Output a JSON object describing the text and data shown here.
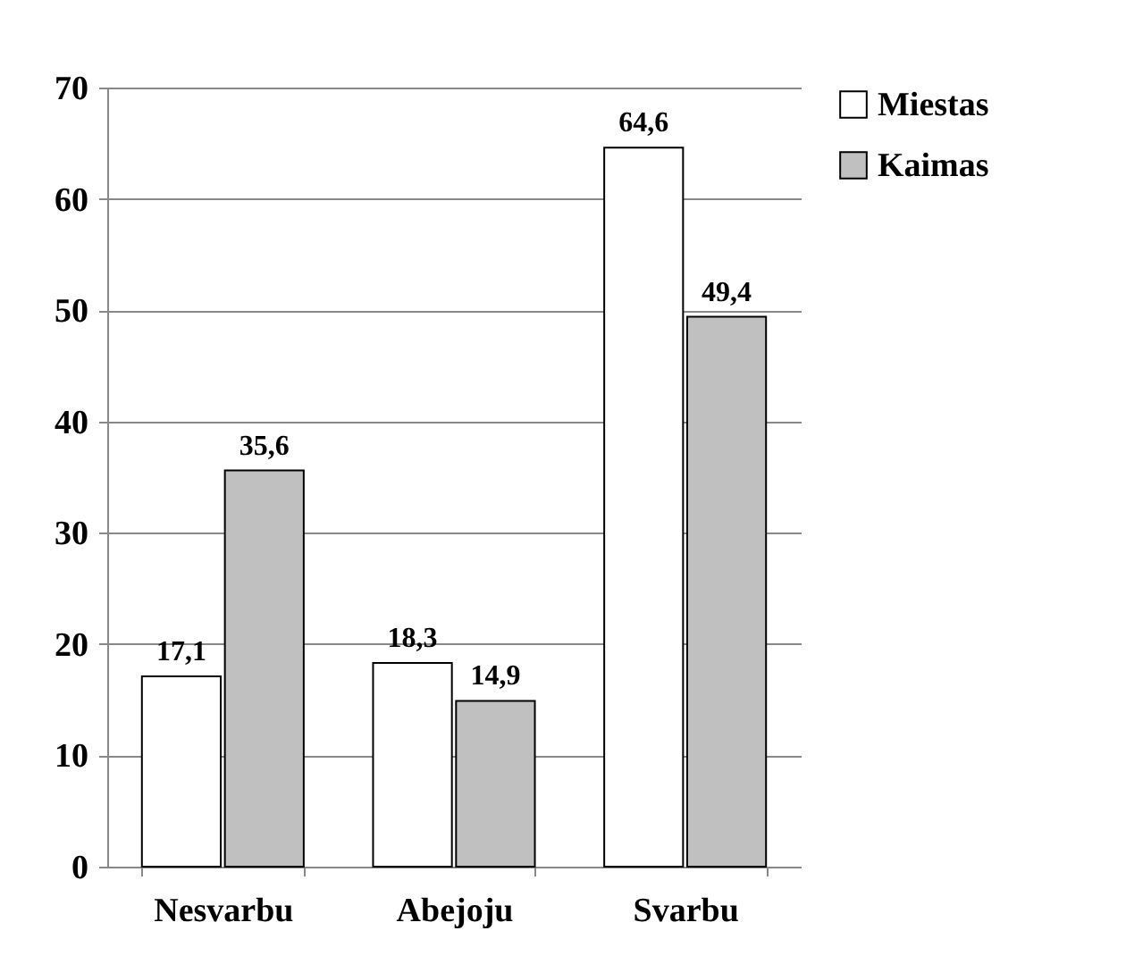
{
  "chart_data": {
    "type": "bar",
    "categories": [
      "Nesvarbu",
      "Abejoju",
      "Svarbu"
    ],
    "series": [
      {
        "name": "Miestas",
        "color": "#ffffff",
        "values": [
          17.1,
          18.3,
          64.6
        ],
        "value_labels": [
          "17,1",
          "18,3",
          "64,6"
        ]
      },
      {
        "name": "Kaimas",
        "color": "#c0c0c0",
        "values": [
          35.6,
          14.9,
          49.4
        ],
        "value_labels": [
          "35,6",
          "14,9",
          "49,4"
        ]
      }
    ],
    "ylim": [
      0,
      70
    ],
    "yticks": [
      0,
      10,
      20,
      30,
      40,
      50,
      60,
      70
    ],
    "grid": "y",
    "legend": "right"
  }
}
